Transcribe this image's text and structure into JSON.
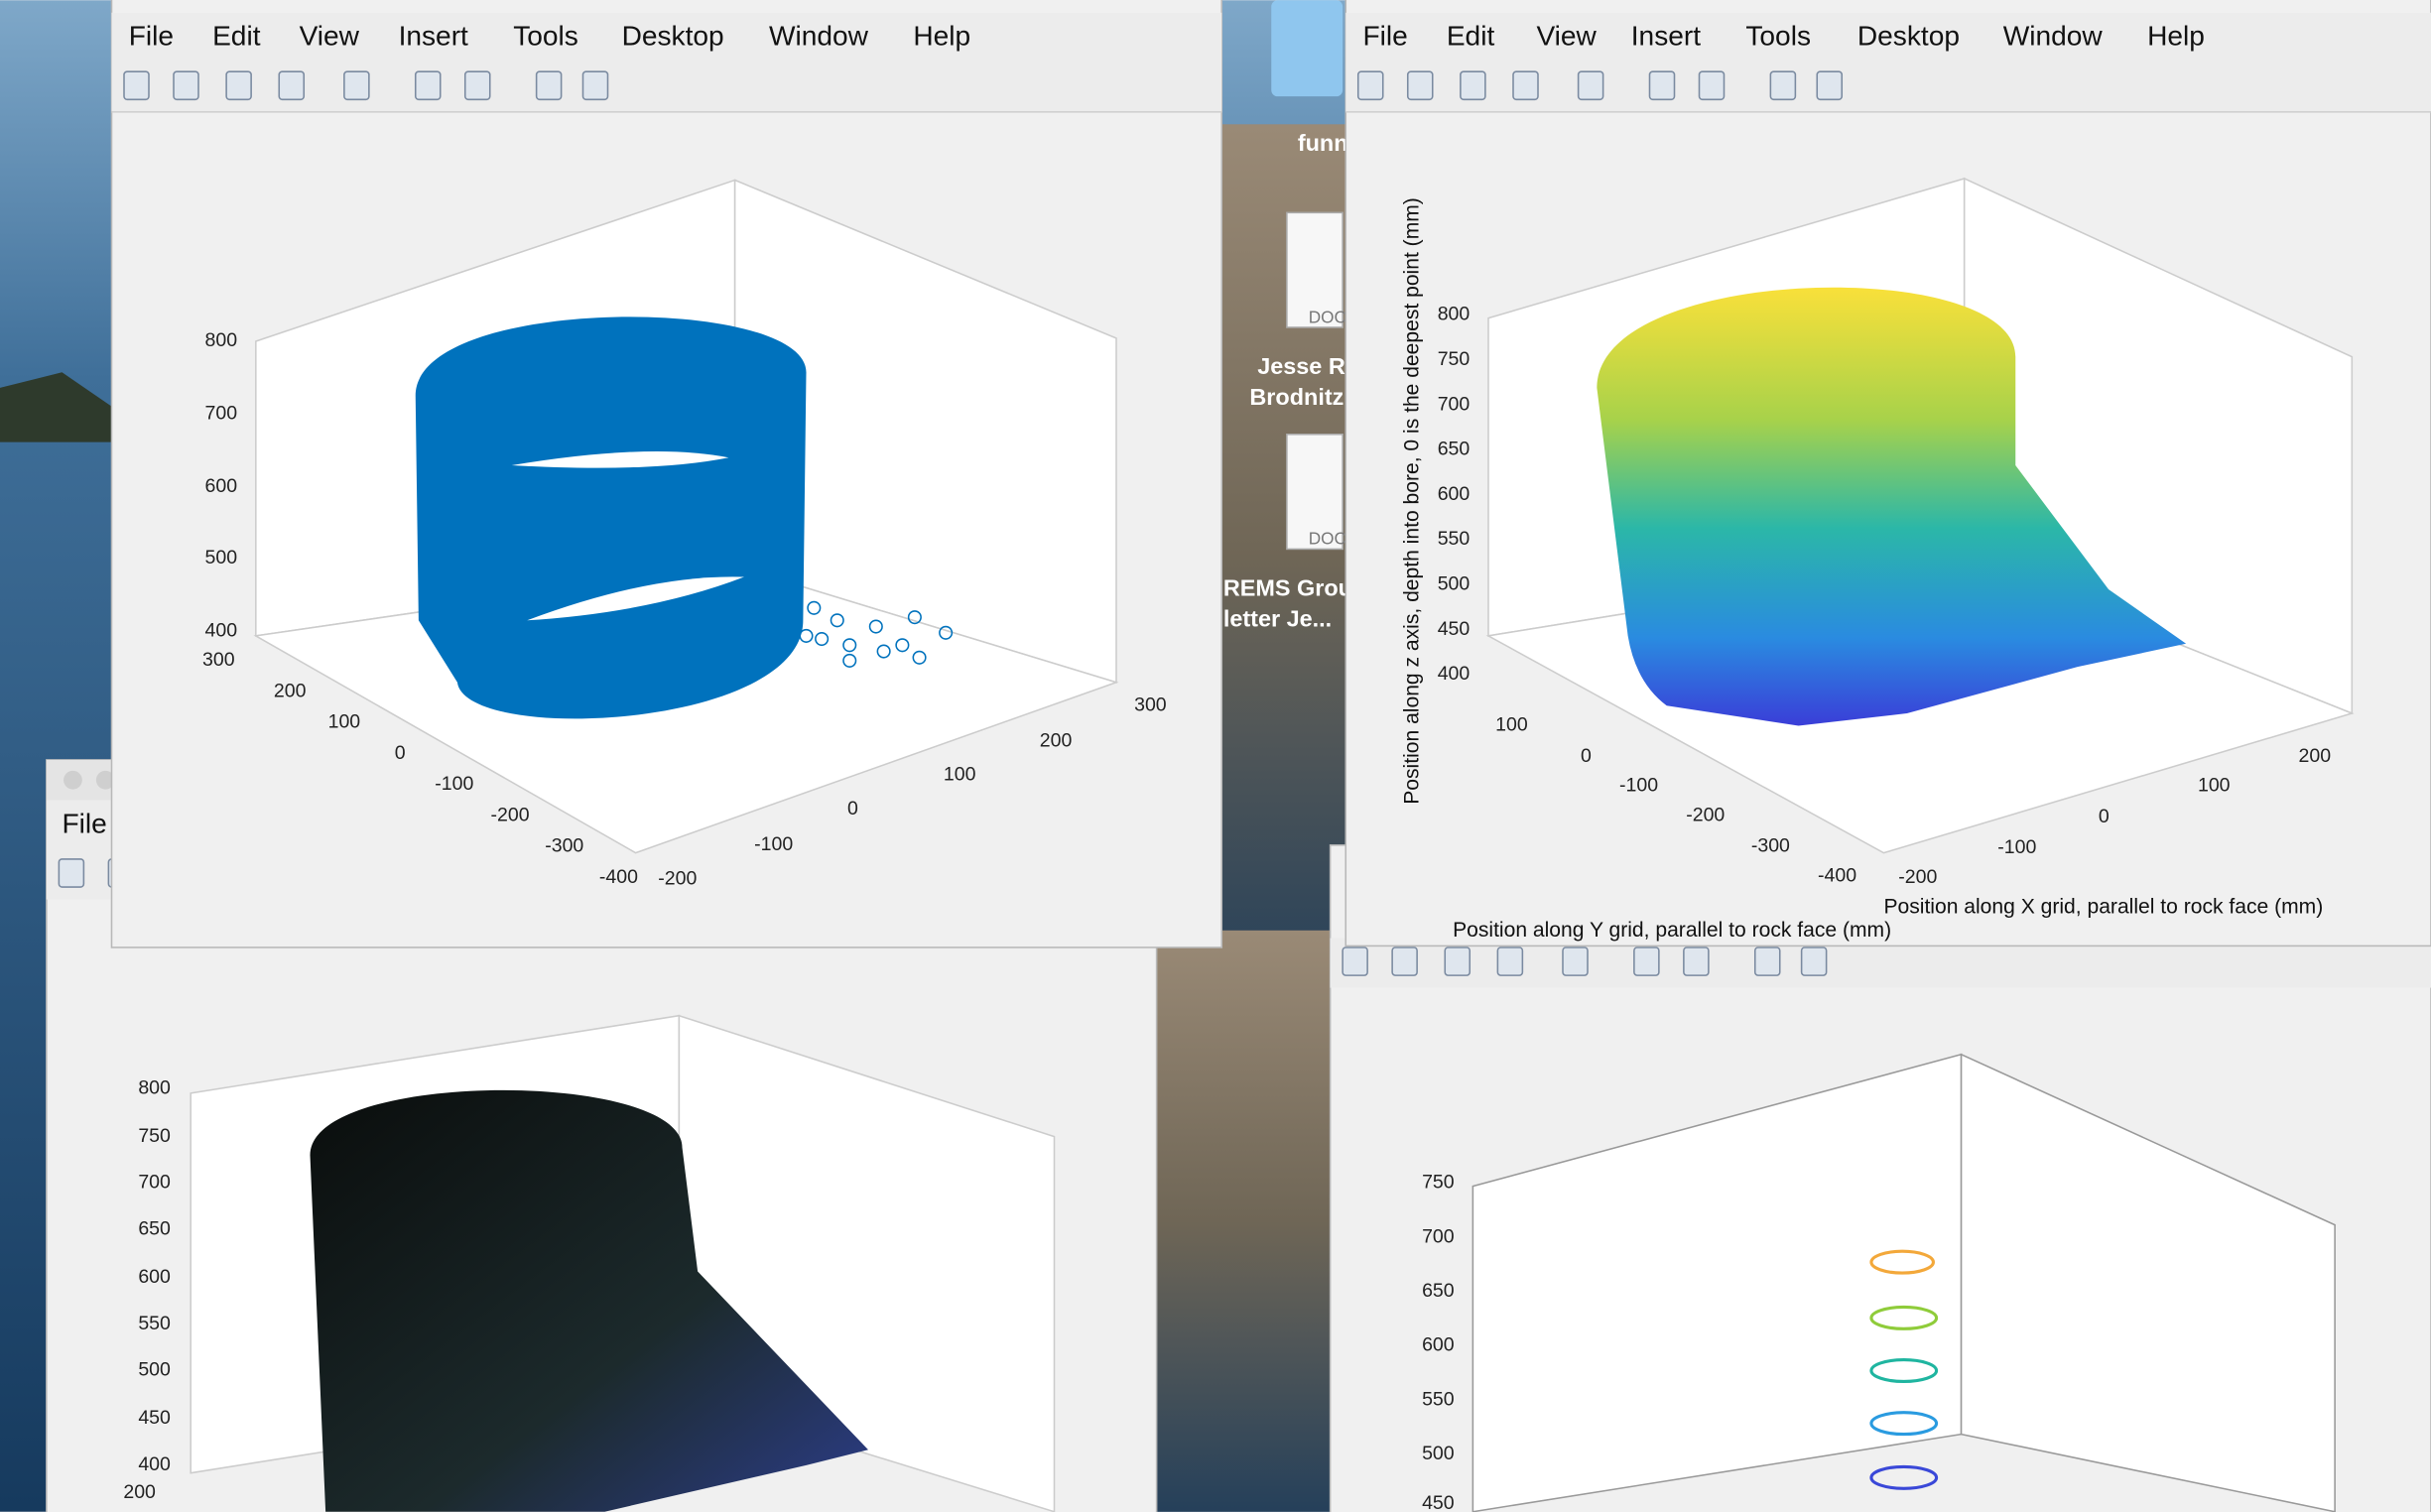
{
  "desktop": {
    "icons": [
      "funn",
      "Jesse R",
      "Brodnitz",
      "REMS Grou",
      "letter Je..."
    ],
    "doc_tags": [
      "DOC",
      "DOC"
    ]
  },
  "windows": [
    {
      "menu": [
        "File",
        "Edit",
        "View",
        "Insert",
        "Tools",
        "Desktop",
        "Window",
        "Help"
      ],
      "z_ticks": [
        "800",
        "700",
        "600",
        "500",
        "400"
      ],
      "y_ticks": [
        "300",
        "200",
        "100",
        "0",
        "-100",
        "-200",
        "-300",
        "-400"
      ],
      "x_ticks": [
        "-200",
        "-100",
        "0",
        "100",
        "200",
        "300"
      ]
    },
    {
      "menu": [
        "File",
        "Edit",
        "View",
        "Insert",
        "Tools",
        "Desktop",
        "Window",
        "Help"
      ],
      "z_ticks": [
        "800",
        "750",
        "700",
        "650",
        "600",
        "550",
        "500",
        "450",
        "400"
      ],
      "y_ticks": [
        "100",
        "0",
        "-100",
        "-200",
        "-300",
        "-400"
      ],
      "x_ticks": [
        "-200",
        "-100",
        "0",
        "100",
        "200"
      ],
      "z_label": "Position along z axis, depth into bore, 0 is the deepest point (mm)",
      "x_label": "Position along X grid, parallel to rock face (mm)",
      "y_label": "Position along Y grid, parallel to rock face (mm)"
    },
    {
      "menu": [
        "File"
      ],
      "z_ticks": [
        "800",
        "750",
        "700",
        "650",
        "600",
        "550",
        "500",
        "450",
        "400"
      ],
      "y_ticks": [
        "200"
      ]
    },
    {
      "z_ticks": [
        "750",
        "700",
        "650",
        "600",
        "550",
        "500",
        "450"
      ]
    }
  ]
}
